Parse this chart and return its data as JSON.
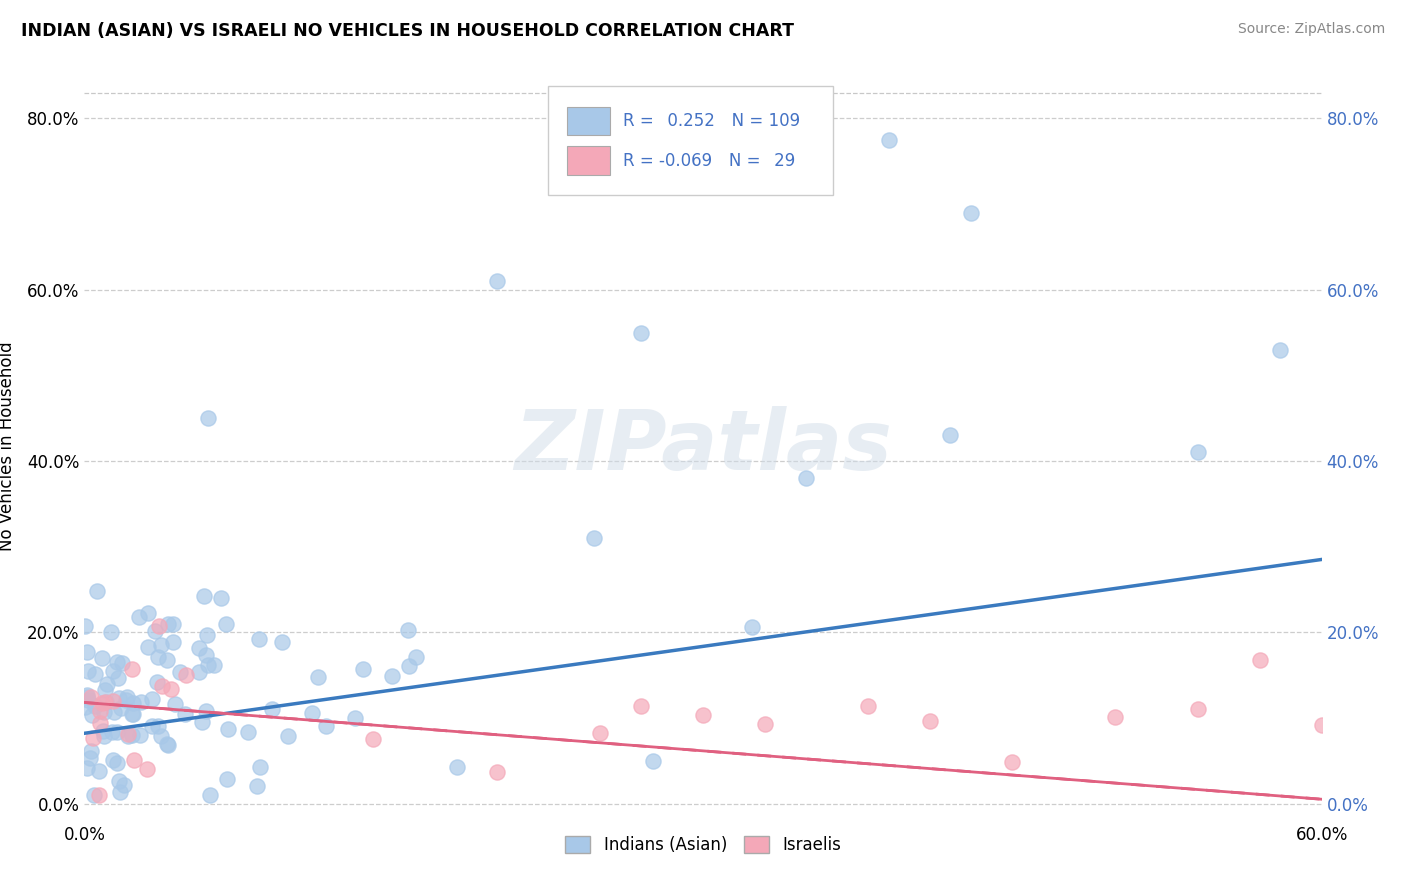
{
  "title": "INDIAN (ASIAN) VS ISRAELI NO VEHICLES IN HOUSEHOLD CORRELATION CHART",
  "source": "Source: ZipAtlas.com",
  "ylabel": "No Vehicles in Household",
  "xmin": 0.0,
  "xmax": 0.6,
  "ymin": -0.02,
  "ymax": 0.855,
  "yticks": [
    0.0,
    0.2,
    0.4,
    0.6,
    0.8
  ],
  "xticks": [
    0.0,
    0.6
  ],
  "xtick_labels": [
    "0.0%",
    "60.0%"
  ],
  "watermark": "ZIPatlas",
  "indian_R": 0.252,
  "indian_N": 109,
  "israeli_R": -0.069,
  "israeli_N": 29,
  "indian_color": "#a8c8e8",
  "israeli_color": "#f4a8b8",
  "indian_line_color": "#3a7abf",
  "israeli_line_color": "#e06080",
  "background_color": "#ffffff",
  "grid_color": "#c8c8c8",
  "indian_line_x0": 0.0,
  "indian_line_x1": 0.6,
  "indian_line_y0": 0.082,
  "indian_line_y1": 0.285,
  "israeli_line_x0": 0.0,
  "israeli_line_x1": 0.6,
  "israeli_line_y0": 0.118,
  "israeli_line_y1": 0.005
}
